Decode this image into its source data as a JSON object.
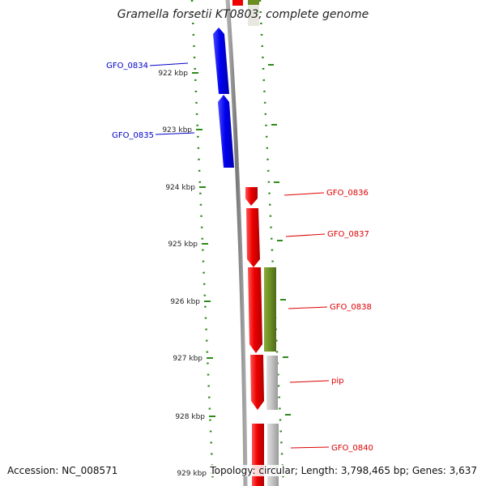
{
  "title": "Gramella forsetii KT0803, complete genome",
  "footer": {
    "accession": "Accession: NC_008571",
    "summary": "Topology: circular; Length: 3,798,465 bp; Genes: 3,637"
  },
  "ticks": [
    {
      "label": "922 kbp"
    },
    {
      "label": "923 kbp"
    },
    {
      "label": "924 kbp"
    },
    {
      "label": "925 kbp"
    },
    {
      "label": "926 kbp"
    },
    {
      "label": "927 kbp"
    },
    {
      "label": "928 kbp"
    },
    {
      "label": "929 kbp"
    }
  ],
  "genes": [
    {
      "label": "GFO_0834",
      "strand": "reverse"
    },
    {
      "label": "GFO_0835",
      "strand": "reverse"
    },
    {
      "label": "GFO_0836",
      "strand": "forward"
    },
    {
      "label": "GFO_0837",
      "strand": "forward"
    },
    {
      "label": "GFO_0838",
      "strand": "forward"
    },
    {
      "label": "pip",
      "strand": "forward"
    },
    {
      "label": "GFO_0840",
      "strand": "forward"
    }
  ],
  "colors": {
    "reverse_cds": "#0000ee",
    "forward_cds": "#ee0000",
    "backbone": "#888888",
    "tick": "#2e8b1a",
    "cog_olive": "#6b8e23",
    "cog_grey": "#c0c0c0",
    "label_reverse": "#0000cc",
    "label_forward": "#dd0000"
  }
}
